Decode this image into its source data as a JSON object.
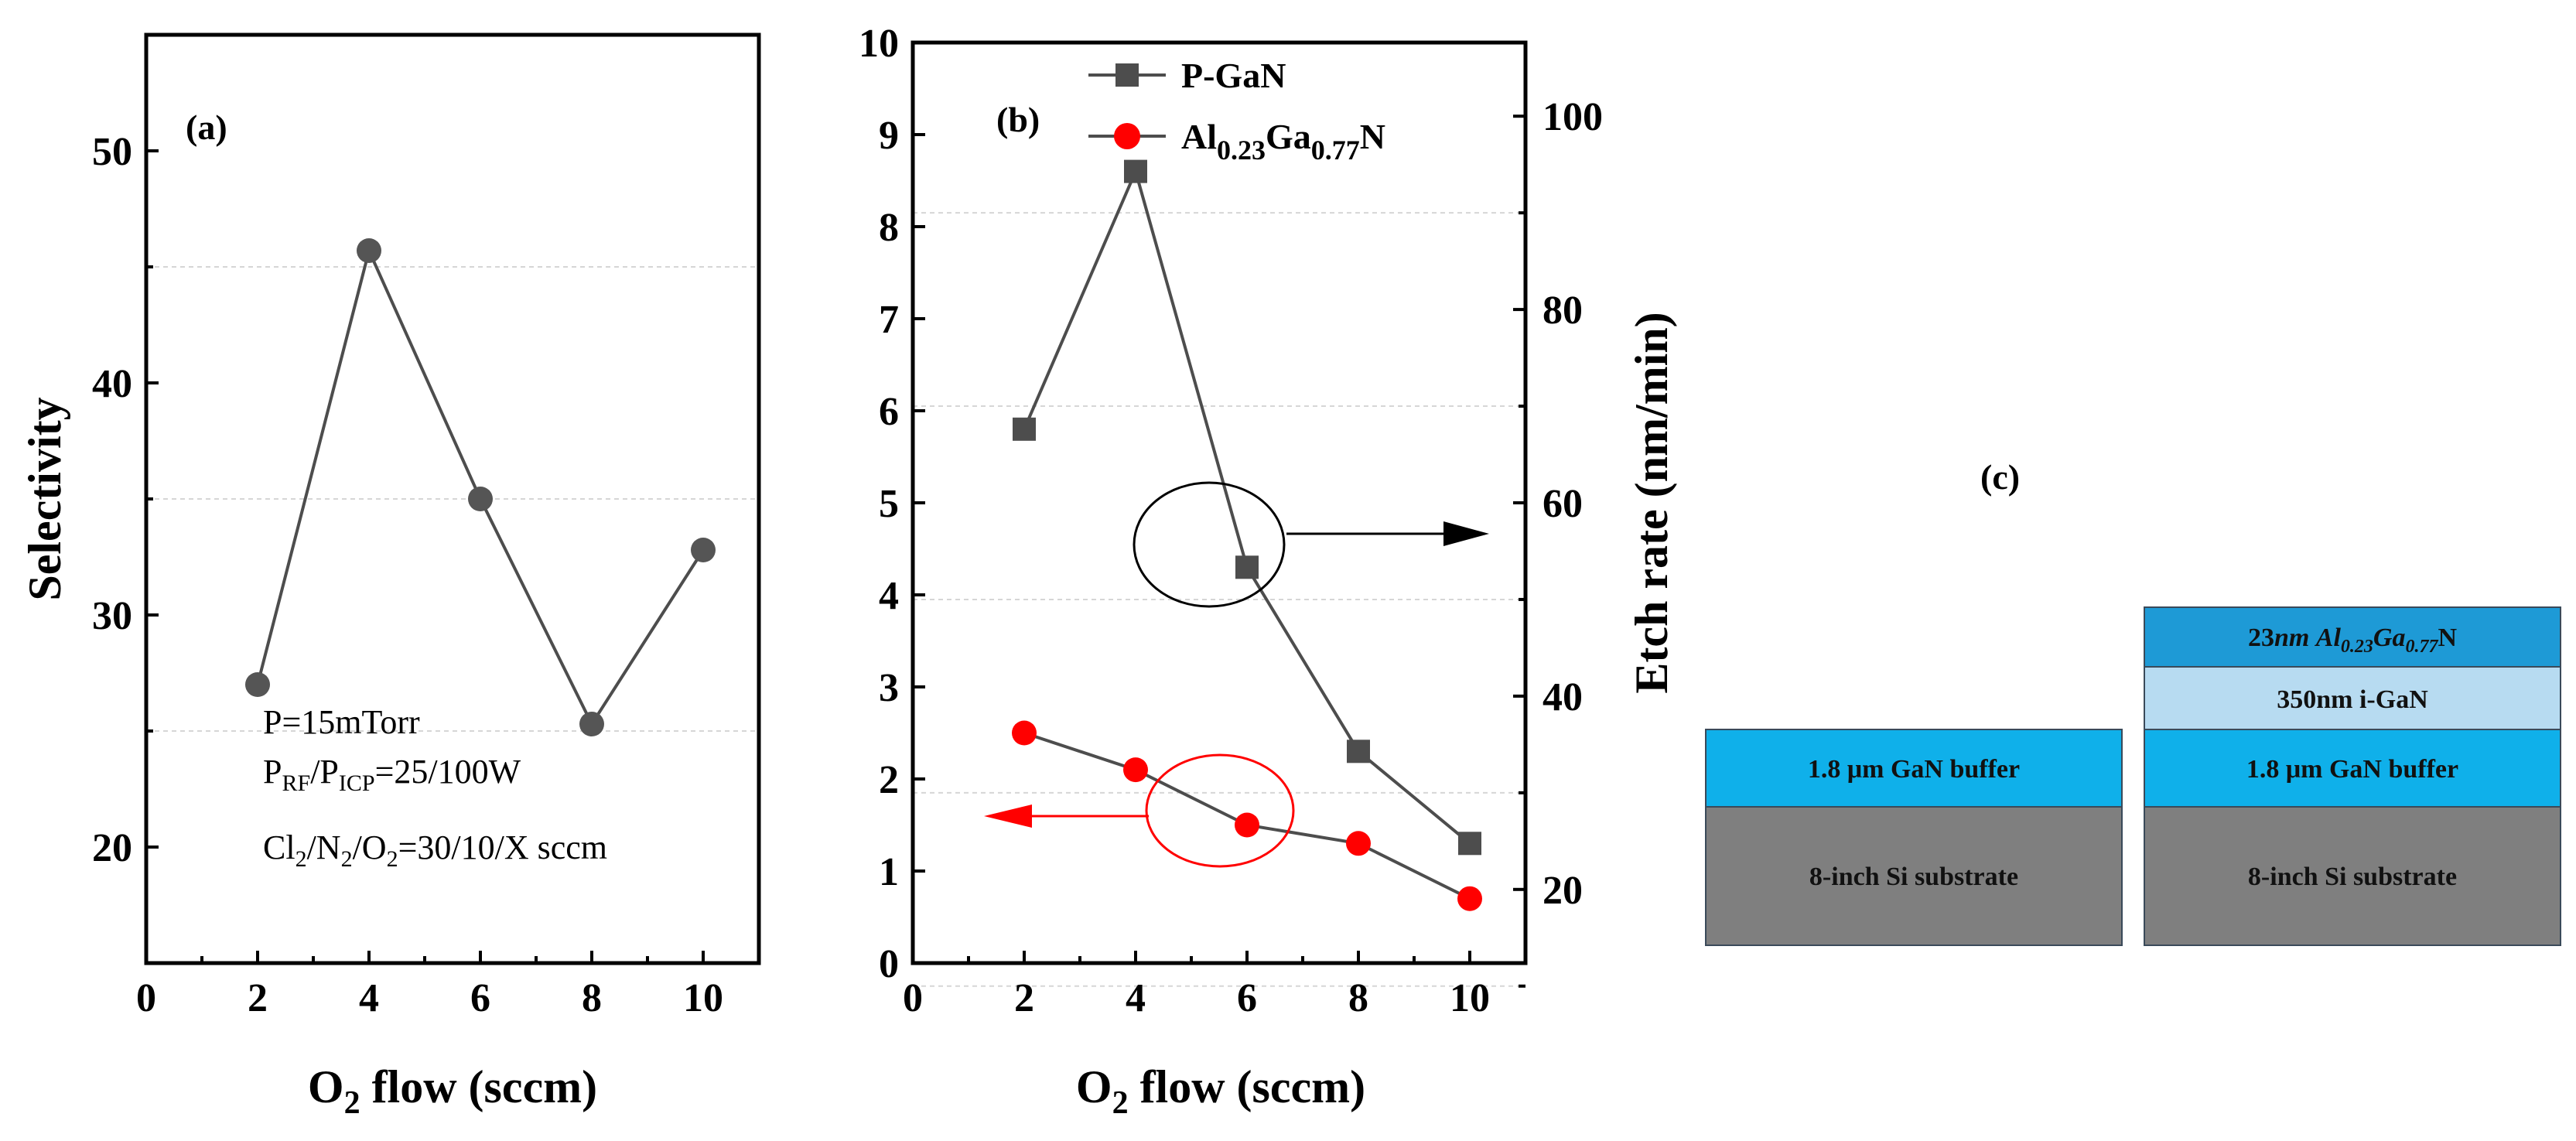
{
  "colors": {
    "series_a": "#555555",
    "pgan": "#4d4d4d",
    "algan": "#ff0000",
    "ann_black": "#000000",
    "ann_red": "#ff0000",
    "layer_algan": "#1e9ad6",
    "layer_igan": "#b7dbf1",
    "layer_buffer": "#0fb0ea",
    "layer_substrate": "#7f7f7f"
  },
  "panel_a": {
    "label": "(a)",
    "conditions": {
      "pressure": "P=15mTorr",
      "power_prefix": "P",
      "power_sub1": "RF",
      "power_mid": "/P",
      "power_sub2": "ICP",
      "power_suffix": "=25/100W",
      "gas_p1": "Cl",
      "gas_s1": "2",
      "gas_p2": "/N",
      "gas_s2": "2",
      "gas_p3": "/O",
      "gas_s3": "2",
      "gas_p4": "=30/10/X sccm"
    }
  },
  "panel_b": {
    "label": "(b)",
    "left_ylabel": "",
    "right_ylabel": "Etch rate (nm/min)",
    "legend": {
      "pgan": "P-GaN",
      "al_main": "Al",
      "al_sub1": "0.23",
      "al_mid": "Ga",
      "al_sub2": "0.77",
      "al_end": "N"
    }
  },
  "panel_c": {
    "label": "(c)",
    "left_stack": {
      "buffer": "1.8 μm GaN buffer",
      "substrate": "8-inch Si substrate"
    },
    "right_stack": {
      "barrier_prefix": "23",
      "barrier_nm": "nm",
      "barrier_al": "Al",
      "barrier_al_sub": "0.23",
      "barrier_ga": "Ga",
      "barrier_ga_sub": "0.77",
      "barrier_n": "N",
      "igan": "350nm i-GaN",
      "buffer": "1.8 μm GaN buffer",
      "substrate": "8-inch Si substrate"
    }
  },
  "chart_data": [
    {
      "type": "line",
      "panel": "(a)",
      "title": "",
      "xlabel_main": "O",
      "xlabel_sub": "2",
      "xlabel_rest": " flow (sccm)",
      "ylabel": "Selectivity",
      "x": [
        2,
        4,
        6,
        8,
        10
      ],
      "series": [
        {
          "name": "Selectivity",
          "values": [
            27.0,
            45.7,
            35.0,
            25.3,
            32.8
          ]
        }
      ],
      "xlim": [
        0,
        11
      ],
      "ylim": [
        15,
        55
      ],
      "xticks": [
        "0",
        "2",
        "4",
        "6",
        "8",
        "10"
      ],
      "yticks": [
        "20",
        "30",
        "40",
        "50"
      ]
    },
    {
      "type": "line",
      "panel": "(b)",
      "title": "",
      "xlabel_main": "O",
      "xlabel_sub": "2",
      "xlabel_rest": " flow (sccm)",
      "ylabel_left": "",
      "ylabel_right": "Etch rate (nm/min)",
      "x": [
        2,
        4,
        6,
        8,
        10
      ],
      "series": [
        {
          "name": "P-GaN",
          "values": [
            5.8,
            8.6,
            4.3,
            2.3,
            1.3
          ]
        },
        {
          "name": "Al0.23Ga0.77N",
          "values": [
            2.5,
            2.1,
            1.5,
            1.3,
            0.7
          ]
        }
      ],
      "xlim": [
        0,
        11
      ],
      "ylim_left": [
        0,
        10
      ],
      "right_axis_ticks": [
        20,
        40,
        60,
        80,
        100
      ],
      "right_axis_tick_labels": [
        "20",
        "40",
        "60",
        "80",
        "100"
      ],
      "right_axis_tick_left_values": [
        0.8,
        2.9,
        5.0,
        7.1,
        9.2
      ],
      "xticks": [
        "0",
        "2",
        "4",
        "6",
        "8",
        "10"
      ],
      "yticks_left": [
        "0",
        "1",
        "2",
        "3",
        "4",
        "5",
        "6",
        "7",
        "8",
        "9",
        "10"
      ]
    }
  ]
}
